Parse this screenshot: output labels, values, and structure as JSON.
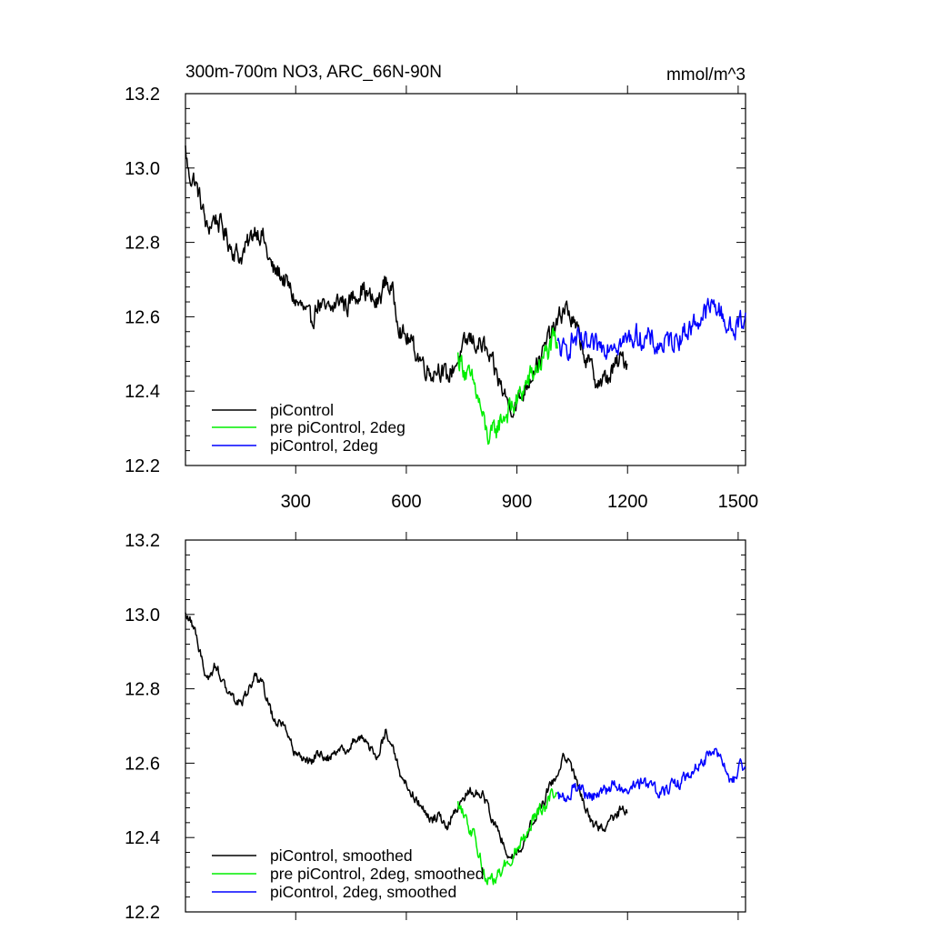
{
  "figure": {
    "title": "300m-700m NO3, ARC_66N-90N",
    "units": "mmol/m^3",
    "colors": {
      "piControl": "#000000",
      "pre_2deg": "#00ee00",
      "pi_2deg": "#0000ff",
      "axis": "#000000"
    }
  },
  "chart_data": [
    {
      "type": "line",
      "title": "300m-700m NO3, ARC_66N-90N",
      "units": "mmol/m^3",
      "xlim": [
        1,
        1520
      ],
      "ylim": [
        12.2,
        13.2
      ],
      "x_ticks": [
        300,
        600,
        900,
        1200,
        1500
      ],
      "x_tick_labels": [
        "300",
        "600",
        "900",
        "1200",
        "1500"
      ],
      "y_ticks": [
        12.2,
        12.4,
        12.6,
        12.8,
        13.0,
        13.2
      ],
      "y_tick_labels": [
        "12.2",
        "12.4",
        "12.6",
        "12.8",
        "13.0",
        "13.2"
      ],
      "grid": false,
      "legend_position": "bottom-left",
      "series": [
        {
          "name": "piControl",
          "color": "#000000",
          "noise": 0.024,
          "x": [
            1,
            10,
            25,
            45,
            60,
            80,
            100,
            125,
            150,
            175,
            190,
            210,
            225,
            240,
            255,
            280,
            300,
            320,
            340,
            360,
            380,
            400,
            420,
            440,
            460,
            480,
            500,
            520,
            545,
            560,
            575,
            590,
            605,
            630,
            650,
            670,
            690,
            710,
            730,
            750,
            770,
            790,
            810,
            830,
            850,
            870,
            890,
            910,
            930,
            950,
            970,
            990,
            1010,
            1030,
            1050,
            1070,
            1090,
            1110,
            1130,
            1150,
            1170,
            1190,
            1200
          ],
          "y": [
            13.05,
            12.98,
            12.97,
            12.9,
            12.83,
            12.87,
            12.84,
            12.79,
            12.76,
            12.8,
            12.84,
            12.82,
            12.76,
            12.72,
            12.72,
            12.68,
            12.64,
            12.62,
            12.58,
            12.64,
            12.61,
            12.62,
            12.65,
            12.63,
            12.66,
            12.68,
            12.65,
            12.63,
            12.7,
            12.67,
            12.61,
            12.55,
            12.54,
            12.5,
            12.47,
            12.45,
            12.47,
            12.43,
            12.47,
            12.5,
            12.54,
            12.53,
            12.52,
            12.47,
            12.43,
            12.38,
            12.36,
            12.38,
            12.43,
            12.47,
            12.5,
            12.55,
            12.58,
            12.63,
            12.59,
            12.54,
            12.48,
            12.44,
            12.42,
            12.44,
            12.47,
            12.49,
            12.48
          ]
        },
        {
          "name": "pre piControl, 2deg",
          "color": "#00ee00",
          "noise": 0.028,
          "x": [
            740,
            755,
            770,
            785,
            800,
            815,
            830,
            845,
            860,
            880,
            900,
            920,
            940,
            960,
            980,
            1000,
            1010
          ],
          "y": [
            12.49,
            12.47,
            12.43,
            12.41,
            12.36,
            12.29,
            12.27,
            12.3,
            12.33,
            12.35,
            12.37,
            12.41,
            12.44,
            12.47,
            12.5,
            12.53,
            12.51
          ]
        },
        {
          "name": "piControl, 2deg",
          "color": "#0000ff",
          "noise": 0.026,
          "x": [
            1010,
            1030,
            1050,
            1070,
            1100,
            1130,
            1160,
            1190,
            1220,
            1250,
            1280,
            1310,
            1340,
            1370,
            1400,
            1420,
            1440,
            1460,
            1475,
            1490,
            1505,
            1520
          ],
          "y": [
            12.52,
            12.5,
            12.54,
            12.53,
            12.51,
            12.52,
            12.54,
            12.53,
            12.55,
            12.54,
            12.52,
            12.53,
            12.55,
            12.57,
            12.6,
            12.62,
            12.63,
            12.6,
            12.57,
            12.56,
            12.59,
            12.6
          ]
        }
      ]
    },
    {
      "type": "line",
      "xlim": [
        1,
        1520
      ],
      "ylim": [
        12.2,
        13.2
      ],
      "x_ticks": [
        300,
        600,
        900,
        1200,
        1500
      ],
      "y_ticks": [
        12.2,
        12.4,
        12.6,
        12.8,
        13.0,
        13.2
      ],
      "y_tick_labels": [
        "12.2",
        "12.4",
        "12.6",
        "12.8",
        "13.0",
        "13.2"
      ],
      "grid": false,
      "legend_position": "bottom-left",
      "series": [
        {
          "name": "piControl, smoothed",
          "color": "#000000",
          "noise": 0.012,
          "x": [
            1,
            10,
            25,
            45,
            60,
            80,
            100,
            125,
            150,
            175,
            190,
            210,
            225,
            240,
            255,
            280,
            300,
            320,
            340,
            360,
            380,
            400,
            420,
            440,
            460,
            480,
            500,
            520,
            545,
            560,
            575,
            590,
            605,
            630,
            650,
            670,
            690,
            710,
            730,
            750,
            770,
            790,
            810,
            830,
            850,
            870,
            890,
            910,
            930,
            950,
            970,
            990,
            1010,
            1030,
            1050,
            1070,
            1090,
            1110,
            1130,
            1150,
            1170,
            1190,
            1200
          ],
          "y": [
            13.0,
            12.99,
            12.96,
            12.88,
            12.82,
            12.86,
            12.83,
            12.78,
            12.76,
            12.8,
            12.83,
            12.81,
            12.76,
            12.72,
            12.71,
            12.67,
            12.63,
            12.61,
            12.6,
            12.63,
            12.61,
            12.62,
            12.64,
            12.63,
            12.66,
            12.67,
            12.64,
            12.62,
            12.69,
            12.66,
            12.6,
            12.55,
            12.54,
            12.5,
            12.47,
            12.45,
            12.46,
            12.43,
            12.47,
            12.5,
            12.53,
            12.52,
            12.51,
            12.46,
            12.42,
            12.37,
            12.35,
            12.37,
            12.42,
            12.46,
            12.49,
            12.54,
            12.57,
            12.62,
            12.58,
            12.53,
            12.47,
            12.43,
            12.42,
            12.44,
            12.46,
            12.48,
            12.47
          ]
        },
        {
          "name": "pre piControl, 2deg, smoothed",
          "color": "#00ee00",
          "noise": 0.015,
          "x": [
            740,
            755,
            770,
            785,
            800,
            815,
            830,
            845,
            860,
            880,
            900,
            920,
            940,
            960,
            980,
            1000,
            1010
          ],
          "y": [
            12.49,
            12.47,
            12.43,
            12.4,
            12.35,
            12.29,
            12.28,
            12.3,
            12.32,
            12.34,
            12.37,
            12.41,
            12.44,
            12.47,
            12.49,
            12.52,
            12.51
          ]
        },
        {
          "name": "piControl, 2deg, smoothed",
          "color": "#0000ff",
          "noise": 0.014,
          "x": [
            1010,
            1030,
            1050,
            1070,
            1100,
            1130,
            1160,
            1190,
            1220,
            1250,
            1280,
            1310,
            1340,
            1370,
            1400,
            1420,
            1440,
            1460,
            1475,
            1490,
            1505,
            1520
          ],
          "y": [
            12.51,
            12.5,
            12.53,
            12.53,
            12.51,
            12.52,
            12.54,
            12.53,
            12.55,
            12.54,
            12.52,
            12.53,
            12.55,
            12.57,
            12.6,
            12.62,
            12.63,
            12.6,
            12.56,
            12.56,
            12.59,
            12.59
          ]
        }
      ]
    }
  ]
}
